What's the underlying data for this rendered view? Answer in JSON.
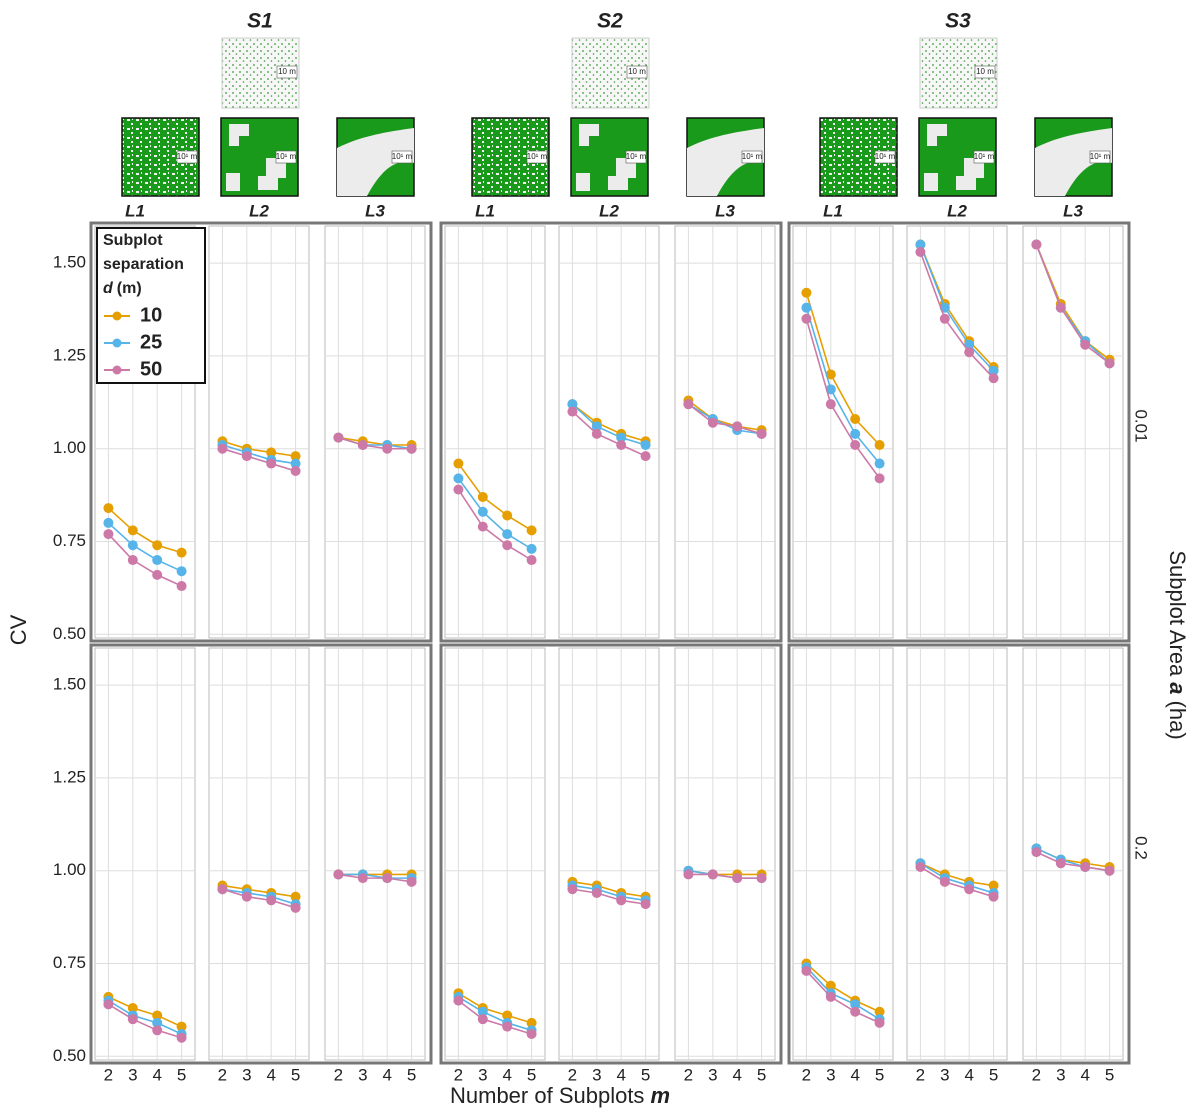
{
  "chart_data": {
    "type": "line",
    "x_label": "Number of Subplots",
    "x_label_symbol": "m",
    "y_label": "CV",
    "facet_label": "Subplot Area",
    "facet_label_symbol": "a",
    "facet_label_unit": "(ha)",
    "legend_title": [
      "Subplot",
      "separation"
    ],
    "legend_symbol": "d",
    "legend_unit": "(m)",
    "map_scale_labels": [
      "10 m",
      "10¹ m"
    ],
    "rows": [
      "0.01",
      "0.2"
    ],
    "groups": [
      {
        "title": "S1",
        "layers": [
          "L1",
          "L2",
          "L3"
        ]
      },
      {
        "title": "S2",
        "layers": [
          "L1",
          "L2",
          "L3"
        ]
      },
      {
        "title": "S3",
        "layers": [
          "L1",
          "L2",
          "L3"
        ]
      }
    ],
    "x": [
      2,
      3,
      4,
      5
    ],
    "xlim": [
      1.45,
      5.55
    ],
    "xticks": [
      2,
      3,
      4,
      5
    ],
    "ylim": [
      0.49,
      1.6
    ],
    "yticks": [
      {
        "value": 0.5,
        "label": "0.50"
      },
      {
        "value": 0.75,
        "label": "0.75"
      },
      {
        "value": 1.0,
        "label": "1.00"
      },
      {
        "value": 1.25,
        "label": "1.25"
      },
      {
        "value": 1.5,
        "label": "1.50"
      }
    ],
    "grid": true,
    "series": [
      {
        "name": "10",
        "color": "#e69f00",
        "values": [
          [
            [
              [
                0.84,
                0.78,
                0.74,
                0.72
              ],
              [
                1.02,
                1.0,
                0.99,
                0.98
              ],
              [
                1.03,
                1.02,
                1.01,
                1.01
              ]
            ],
            [
              [
                0.96,
                0.87,
                0.82,
                0.78
              ],
              [
                1.12,
                1.07,
                1.04,
                1.02
              ],
              [
                1.13,
                1.08,
                1.06,
                1.05
              ]
            ],
            [
              [
                1.42,
                1.2,
                1.08,
                1.01
              ],
              [
                1.55,
                1.39,
                1.29,
                1.22
              ],
              [
                1.55,
                1.39,
                1.29,
                1.24
              ]
            ]
          ],
          [
            [
              [
                0.66,
                0.63,
                0.61,
                0.58
              ],
              [
                0.96,
                0.95,
                0.94,
                0.93
              ],
              [
                0.99,
                0.99,
                0.99,
                0.99
              ]
            ],
            [
              [
                0.67,
                0.63,
                0.61,
                0.59
              ],
              [
                0.97,
                0.96,
                0.94,
                0.93
              ],
              [
                1.0,
                0.99,
                0.99,
                0.99
              ]
            ],
            [
              [
                0.75,
                0.69,
                0.65,
                0.62
              ],
              [
                1.02,
                0.99,
                0.97,
                0.96
              ],
              [
                1.06,
                1.03,
                1.02,
                1.01
              ]
            ]
          ]
        ]
      },
      {
        "name": "25",
        "color": "#56b4e9",
        "values": [
          [
            [
              [
                0.8,
                0.74,
                0.7,
                0.67
              ],
              [
                1.01,
                0.99,
                0.97,
                0.96
              ],
              [
                1.03,
                1.01,
                1.01,
                1.0
              ]
            ],
            [
              [
                0.92,
                0.83,
                0.77,
                0.73
              ],
              [
                1.12,
                1.06,
                1.03,
                1.01
              ],
              [
                1.12,
                1.08,
                1.05,
                1.04
              ]
            ],
            [
              [
                1.38,
                1.16,
                1.04,
                0.96
              ],
              [
                1.55,
                1.38,
                1.28,
                1.21
              ],
              [
                1.55,
                1.38,
                1.29,
                1.23
              ]
            ]
          ],
          [
            [
              [
                0.65,
                0.61,
                0.59,
                0.56
              ],
              [
                0.95,
                0.94,
                0.93,
                0.91
              ],
              [
                0.99,
                0.99,
                0.98,
                0.98
              ]
            ],
            [
              [
                0.66,
                0.62,
                0.59,
                0.57
              ],
              [
                0.96,
                0.95,
                0.93,
                0.92
              ],
              [
                1.0,
                0.99,
                0.98,
                0.98
              ]
            ],
            [
              [
                0.74,
                0.67,
                0.64,
                0.6
              ],
              [
                1.02,
                0.98,
                0.96,
                0.94
              ],
              [
                1.06,
                1.03,
                1.01,
                1.0
              ]
            ]
          ]
        ]
      },
      {
        "name": "50",
        "color": "#cc79a7",
        "values": [
          [
            [
              [
                0.77,
                0.7,
                0.66,
                0.63
              ],
              [
                1.0,
                0.98,
                0.96,
                0.94
              ],
              [
                1.03,
                1.01,
                1.0,
                1.0
              ]
            ],
            [
              [
                0.89,
                0.79,
                0.74,
                0.7
              ],
              [
                1.1,
                1.04,
                1.01,
                0.98
              ],
              [
                1.12,
                1.07,
                1.06,
                1.04
              ]
            ],
            [
              [
                1.35,
                1.12,
                1.01,
                0.92
              ],
              [
                1.53,
                1.35,
                1.26,
                1.19
              ],
              [
                1.55,
                1.38,
                1.28,
                1.23
              ]
            ]
          ],
          [
            [
              [
                0.64,
                0.6,
                0.57,
                0.55
              ],
              [
                0.95,
                0.93,
                0.92,
                0.9
              ],
              [
                0.99,
                0.98,
                0.98,
                0.97
              ]
            ],
            [
              [
                0.65,
                0.6,
                0.58,
                0.56
              ],
              [
                0.95,
                0.94,
                0.92,
                0.91
              ],
              [
                0.99,
                0.99,
                0.98,
                0.98
              ]
            ],
            [
              [
                0.73,
                0.66,
                0.62,
                0.59
              ],
              [
                1.01,
                0.97,
                0.95,
                0.93
              ],
              [
                1.05,
                1.02,
                1.01,
                1.0
              ]
            ]
          ]
        ]
      }
    ]
  }
}
